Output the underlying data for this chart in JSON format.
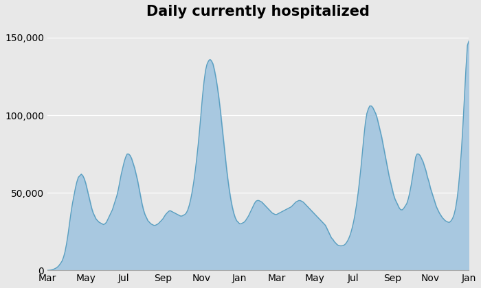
{
  "title": "Daily currently hospitalized",
  "title_fontsize": 15,
  "title_fontweight": "bold",
  "bg_color": "#e8e8e8",
  "fill_color": "#a8c8e0",
  "line_color": "#5a9fc0",
  "ylim": [
    0,
    158000
  ],
  "yticks": [
    0,
    50000,
    100000,
    150000
  ],
  "ytick_labels": [
    "0",
    "50,000",
    "100,000",
    "150,000"
  ],
  "xlabel_months": [
    "Mar",
    "May",
    "Jul",
    "Sep",
    "Nov",
    "Jan",
    "Mar",
    "May",
    "Jul",
    "Sep",
    "Nov",
    "Jan"
  ],
  "data_points": [
    0,
    0,
    100,
    300,
    600,
    1000,
    1500,
    2200,
    3200,
    4500,
    6000,
    8500,
    12000,
    17000,
    23000,
    30000,
    37000,
    43000,
    48000,
    53000,
    57000,
    60000,
    61000,
    62000,
    61000,
    59000,
    56000,
    52000,
    48000,
    44000,
    40000,
    37000,
    35000,
    33000,
    32000,
    31000,
    30500,
    30000,
    29500,
    30000,
    31000,
    33000,
    35000,
    37000,
    39000,
    42000,
    45000,
    48000,
    52000,
    57000,
    62000,
    66000,
    70000,
    73000,
    75000,
    75000,
    74000,
    72000,
    69000,
    66000,
    62000,
    58000,
    53000,
    48000,
    43000,
    39000,
    36000,
    34000,
    32000,
    31000,
    30000,
    29500,
    29000,
    29000,
    29500,
    30000,
    31000,
    32000,
    33000,
    34500,
    36000,
    37000,
    38000,
    38500,
    38000,
    37500,
    37000,
    36500,
    36000,
    35500,
    35000,
    35000,
    35500,
    36000,
    37000,
    39000,
    42000,
    46000,
    51000,
    57000,
    64000,
    72000,
    81000,
    91000,
    102000,
    113000,
    122000,
    129000,
    133000,
    135000,
    136000,
    135000,
    133000,
    129000,
    124000,
    118000,
    111000,
    103000,
    94000,
    85000,
    76000,
    67000,
    59000,
    52000,
    46000,
    41000,
    37000,
    34000,
    32000,
    31000,
    30000,
    30000,
    30500,
    31000,
    32000,
    33500,
    35000,
    37000,
    39000,
    41000,
    43000,
    44500,
    45000,
    45000,
    44500,
    44000,
    43000,
    42000,
    41000,
    40000,
    39000,
    38000,
    37000,
    36500,
    36000,
    36000,
    36500,
    37000,
    37500,
    38000,
    38500,
    39000,
    39500,
    40000,
    40500,
    41000,
    42000,
    43000,
    44000,
    44500,
    45000,
    45000,
    44500,
    44000,
    43000,
    42000,
    41000,
    40000,
    39000,
    38000,
    37000,
    36000,
    35000,
    34000,
    33000,
    32000,
    31000,
    30000,
    29000,
    27000,
    25000,
    23000,
    21000,
    20000,
    18500,
    17500,
    16500,
    16000,
    15800,
    15800,
    16000,
    16500,
    17500,
    19000,
    21000,
    23500,
    27000,
    31000,
    36000,
    42000,
    49000,
    57000,
    66000,
    76000,
    86000,
    95000,
    101000,
    104000,
    106000,
    106000,
    105000,
    103000,
    101000,
    98000,
    94000,
    90000,
    86000,
    81000,
    76000,
    71000,
    66000,
    61000,
    57000,
    53000,
    49000,
    46000,
    44000,
    42000,
    40000,
    39000,
    39000,
    40000,
    41500,
    43000,
    46000,
    50000,
    55000,
    61000,
    67000,
    73000,
    75000,
    75000,
    74000,
    72000,
    70000,
    67000,
    64000,
    60000,
    57000,
    53000,
    50000,
    47000,
    44000,
    41000,
    39000,
    37000,
    35500,
    34000,
    33000,
    32000,
    31500,
    31000,
    31000,
    32000,
    33500,
    36000,
    40000,
    46000,
    54000,
    65000,
    78000,
    94000,
    112000,
    130000,
    145000,
    148000
  ]
}
